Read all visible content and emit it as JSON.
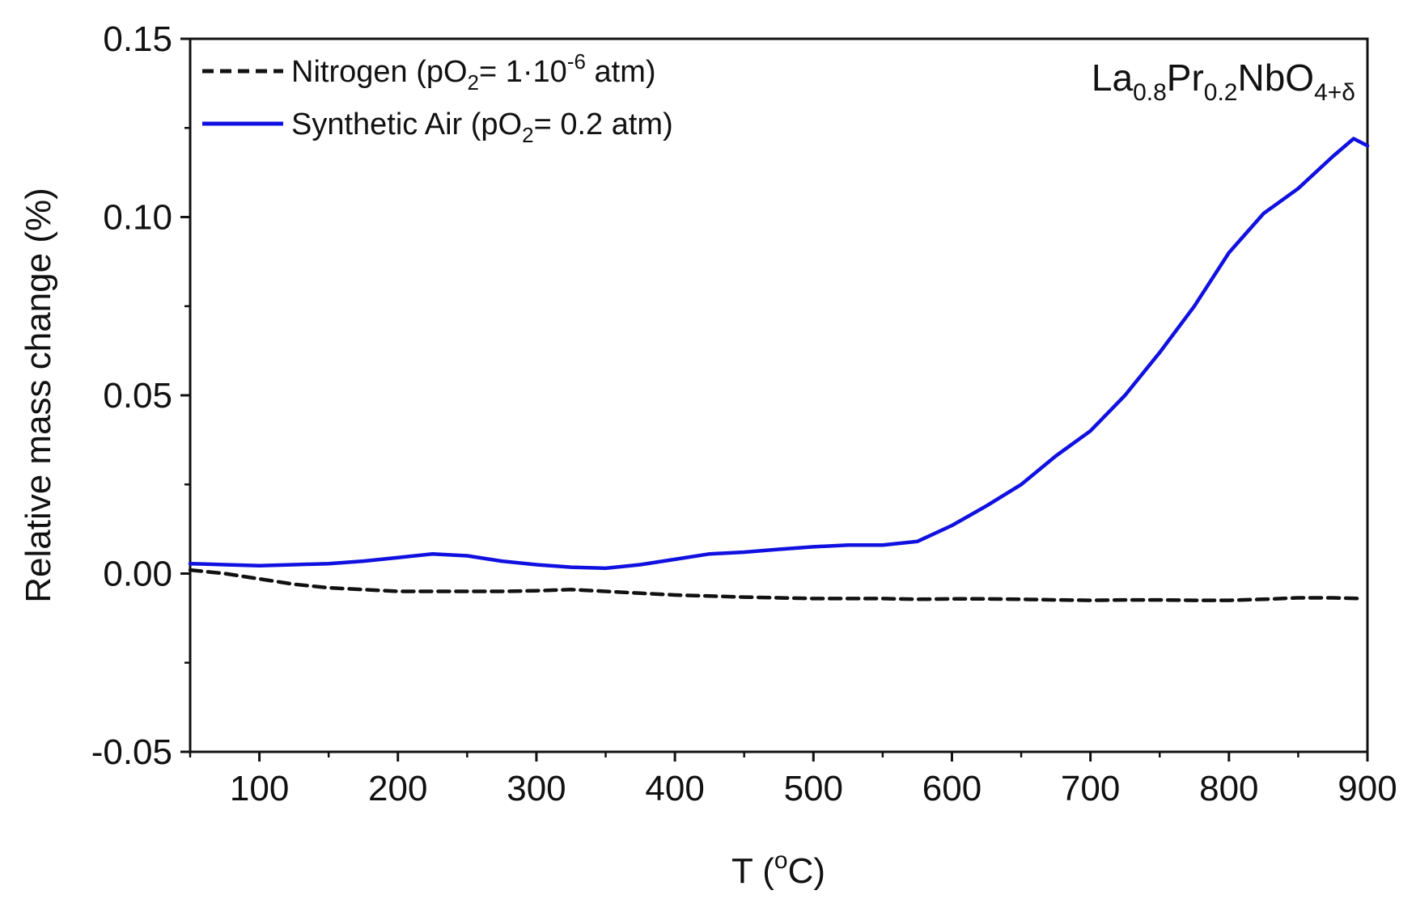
{
  "chart_data": {
    "type": "line",
    "title": "",
    "xlabel": "T (°C)",
    "xlabel_main": "T (",
    "xlabel_degree": "o",
    "xlabel_unit": "C)",
    "ylabel": "Relative mass change (%)",
    "xlim": [
      50,
      900
    ],
    "ylim": [
      -0.05,
      0.15
    ],
    "x_ticks": [
      100,
      200,
      300,
      400,
      500,
      600,
      700,
      800,
      900
    ],
    "x_tick_labels": [
      "100",
      "200",
      "300",
      "400",
      "500",
      "600",
      "700",
      "800",
      "900"
    ],
    "y_ticks": [
      -0.05,
      0.0,
      0.05,
      0.1,
      0.15
    ],
    "y_tick_labels": [
      "-0.05",
      "0.00",
      "0.05",
      "0.10",
      "0.15"
    ],
    "grid": false,
    "legend_position": "top-left",
    "annotation": {
      "text": "La0.8Pr0.2NbO4+δ",
      "parts": [
        "La",
        "0.8",
        "Pr",
        "0.2",
        "NbO",
        "4+δ"
      ],
      "position": "top-right"
    },
    "series": [
      {
        "name": "Nitrogen (pO2= 1·10-6 atm)",
        "legend_parts": [
          "Nitrogen (pO",
          "2",
          "= 1·10",
          "-6",
          " atm)"
        ],
        "color": "#111111",
        "style": "dashed",
        "x": [
          50,
          75,
          100,
          125,
          150,
          175,
          200,
          225,
          250,
          275,
          300,
          325,
          350,
          375,
          400,
          425,
          450,
          475,
          500,
          525,
          550,
          575,
          600,
          625,
          650,
          675,
          700,
          725,
          750,
          775,
          800,
          825,
          850,
          875,
          895
        ],
        "y": [
          0.001,
          0.0,
          -0.0015,
          -0.003,
          -0.004,
          -0.0045,
          -0.005,
          -0.005,
          -0.005,
          -0.005,
          -0.0048,
          -0.0045,
          -0.005,
          -0.0055,
          -0.006,
          -0.0063,
          -0.0066,
          -0.0068,
          -0.007,
          -0.007,
          -0.007,
          -0.0072,
          -0.0071,
          -0.0071,
          -0.0072,
          -0.0074,
          -0.0075,
          -0.0074,
          -0.0074,
          -0.0075,
          -0.0075,
          -0.0072,
          -0.0068,
          -0.0068,
          -0.007
        ]
      },
      {
        "name": "Synthetic Air (pO2= 0.2 atm)",
        "legend_parts": [
          "Synthetic Air (pO",
          "2",
          "= 0.2 atm)"
        ],
        "color": "#1010e0",
        "style": "solid",
        "x": [
          50,
          75,
          100,
          125,
          150,
          175,
          200,
          225,
          250,
          275,
          300,
          325,
          350,
          375,
          400,
          425,
          450,
          475,
          500,
          525,
          550,
          575,
          600,
          625,
          650,
          675,
          700,
          725,
          750,
          775,
          800,
          825,
          850,
          875,
          890,
          900
        ],
        "y": [
          0.0028,
          0.0025,
          0.0022,
          0.0025,
          0.0028,
          0.0035,
          0.0045,
          0.0055,
          0.005,
          0.0035,
          0.0025,
          0.0018,
          0.0015,
          0.0025,
          0.004,
          0.0055,
          0.006,
          0.0068,
          0.0075,
          0.008,
          0.008,
          0.009,
          0.0135,
          0.019,
          0.025,
          0.033,
          0.04,
          0.05,
          0.062,
          0.075,
          0.09,
          0.101,
          0.108,
          0.117,
          0.122,
          0.12
        ]
      }
    ]
  }
}
